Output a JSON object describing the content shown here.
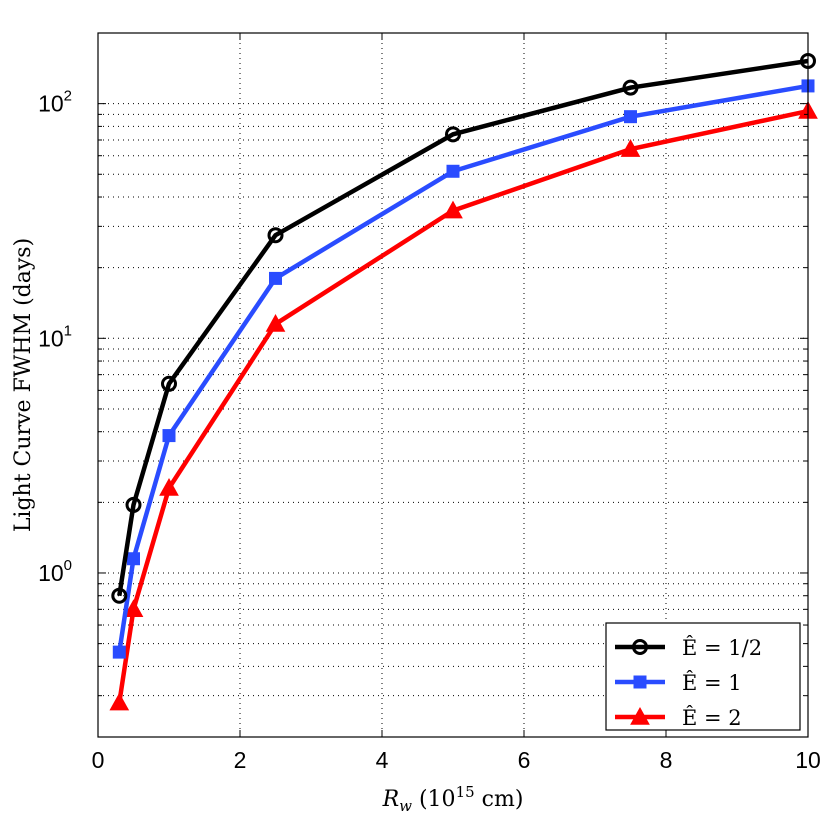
{
  "chart_data": {
    "type": "line",
    "xlabel": {
      "var": "R",
      "sub": "w",
      "text1": " (10",
      "sup": "15",
      "text2": " cm)"
    },
    "ylabel": "Light Curve FWHM (days)",
    "xlim": [
      0,
      10
    ],
    "ylim": [
      0.2,
      200
    ],
    "yscale": "log",
    "grid": true,
    "x_ticks": [
      "0",
      "2",
      "4",
      "6",
      "8",
      "10"
    ],
    "y_ticks": [
      {
        "base": "10",
        "exp": "0"
      },
      {
        "base": "10",
        "exp": "1"
      },
      {
        "base": "10",
        "exp": "2"
      }
    ],
    "legend_position": "bottom-right",
    "series": [
      {
        "name": "Ê = 1/2",
        "color": "#000000",
        "marker": "circle",
        "x": [
          0.3,
          0.5,
          1,
          2.5,
          5,
          7.5,
          10
        ],
        "y": [
          0.8,
          1.95,
          6.4,
          27.5,
          74,
          117,
          152
        ]
      },
      {
        "name": "Ê = 1",
        "color": "#2a4cff",
        "marker": "square",
        "x": [
          0.3,
          0.5,
          1,
          2.5,
          5,
          7.5,
          10
        ],
        "y": [
          0.46,
          1.15,
          3.85,
          18,
          51.5,
          88,
          119
        ]
      },
      {
        "name": "Ê = 2",
        "color": "#ff0000",
        "marker": "triangle",
        "x": [
          0.3,
          0.5,
          1,
          2.5,
          5,
          7.5,
          10
        ],
        "y": [
          0.28,
          0.7,
          2.3,
          11.5,
          35,
          64,
          93
        ]
      }
    ]
  }
}
